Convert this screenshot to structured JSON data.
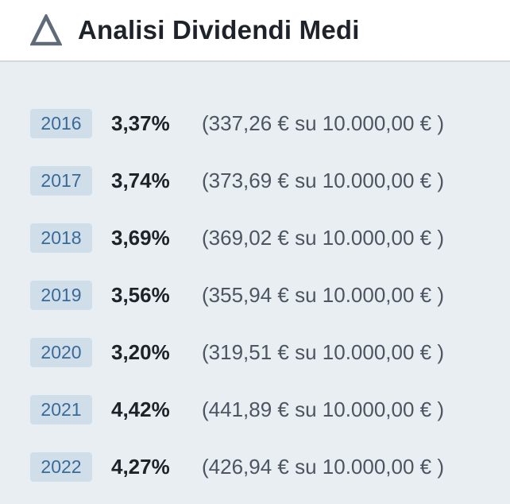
{
  "header": {
    "title": "Analisi Dividendi Medi",
    "icon": "delta-triangle-icon"
  },
  "colors": {
    "icon": "#5f6b78",
    "badge_bg": "#d0deea",
    "badge_text": "#3a6a98",
    "panel_bg": "#e9eef3"
  },
  "rows": [
    {
      "year": "2016",
      "percent": "3,37%",
      "detail": "(337,26 € su 10.000,00 € )"
    },
    {
      "year": "2017",
      "percent": "3,74%",
      "detail": "(373,69 € su 10.000,00 € )"
    },
    {
      "year": "2018",
      "percent": "3,69%",
      "detail": "(369,02 € su 10.000,00 € )"
    },
    {
      "year": "2019",
      "percent": "3,56%",
      "detail": "(355,94 € su 10.000,00 € )"
    },
    {
      "year": "2020",
      "percent": "3,20%",
      "detail": "(319,51 € su 10.000,00 € )"
    },
    {
      "year": "2021",
      "percent": "4,42%",
      "detail": "(441,89 € su 10.000,00 € )"
    },
    {
      "year": "2022",
      "percent": "4,27%",
      "detail": "(426,94 € su 10.000,00 € )"
    }
  ]
}
